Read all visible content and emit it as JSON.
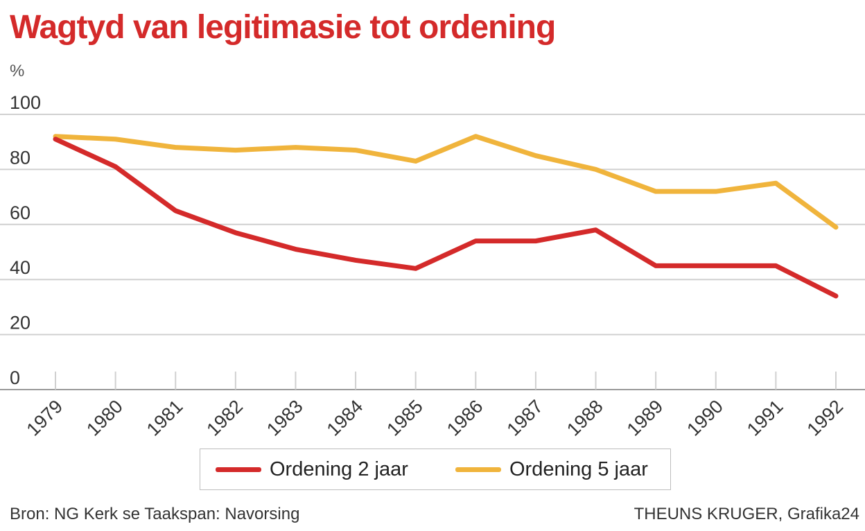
{
  "title": "Wagtyd van legitimasie tot ordening",
  "source": "Bron: NG Kerk se Taakspan: Navorsing",
  "credit": "THEUNS KRUGER, Grafika24",
  "chart_data": {
    "type": "line",
    "title": "Wagtyd van legitimasie tot ordening",
    "ylabel": "%",
    "xlabel": "",
    "x": [
      "1979",
      "1980",
      "1981",
      "1982",
      "1983",
      "1984",
      "1985",
      "1986",
      "1987",
      "1988",
      "1989",
      "1990",
      "1991",
      "1992"
    ],
    "ylim": [
      0,
      100
    ],
    "yticks": [
      0,
      20,
      40,
      60,
      80,
      100
    ],
    "grid": true,
    "legend": "bottom",
    "series": [
      {
        "name": "Ordening 2 jaar",
        "color": "#d42a2a",
        "values": [
          91,
          81,
          65,
          57,
          51,
          47,
          44,
          54,
          54,
          58,
          45,
          45,
          45,
          34
        ]
      },
      {
        "name": "Ordening 5 jaar",
        "color": "#f0b43c",
        "values": [
          92,
          91,
          88,
          87,
          88,
          87,
          83,
          92,
          85,
          80,
          72,
          72,
          75,
          59
        ]
      }
    ]
  }
}
